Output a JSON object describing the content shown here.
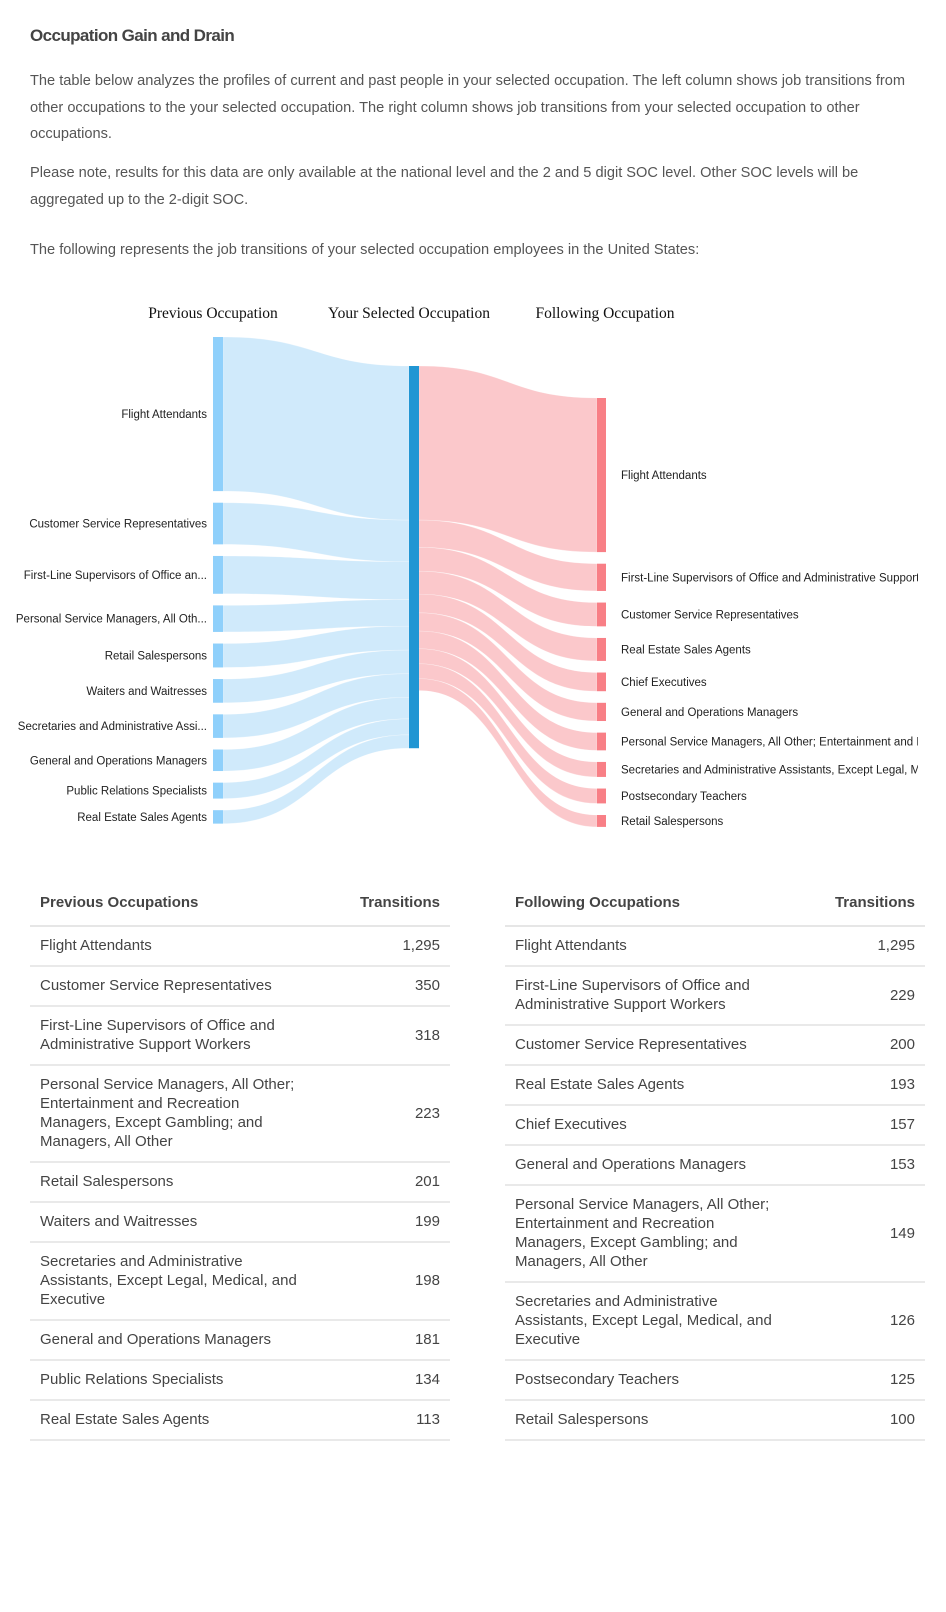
{
  "title": "Occupation Gain and Drain",
  "intro": "The table below analyzes the profiles of current and past people in your selected occupation. The left column shows job transitions from other occupations to the your selected occupation. The right column shows job transitions from your selected occupation to other occupations.",
  "note": "Please note, results for this data are only available at the national level and the 2 and 5 digit SOC level. Other SOC levels will be aggregated up to the 2-digit SOC.",
  "lead": "The following represents the job transitions of your selected occupation employees in the United States:",
  "chart_data": {
    "type": "sankey",
    "column_titles": [
      "Previous Occupation",
      "Your Selected Occupation",
      "Following Occupation"
    ],
    "colors": {
      "prev_node": "#8fd0fb",
      "prev_link": "#cde9fb",
      "center_node": "#2196d3",
      "next_node": "#f87f86",
      "next_link": "#fbc5c8"
    },
    "previous": [
      {
        "label": "Flight Attendants",
        "value": 1295
      },
      {
        "label": "Customer Service Representatives",
        "value": 350
      },
      {
        "label": "First-Line Supervisors of Office an...",
        "value": 318
      },
      {
        "label": "Personal Service Managers, All Oth...",
        "value": 223
      },
      {
        "label": "Retail Salespersons",
        "value": 201
      },
      {
        "label": "Waiters and Waitresses",
        "value": 199
      },
      {
        "label": "Secretaries and Administrative Assi...",
        "value": 198
      },
      {
        "label": "General and Operations Managers",
        "value": 181
      },
      {
        "label": "Public Relations Specialists",
        "value": 134
      },
      {
        "label": "Real Estate Sales Agents",
        "value": 113
      }
    ],
    "following": [
      {
        "label": "Flight Attendants",
        "value": 1295
      },
      {
        "label": "First-Line Supervisors of Office and Administrative Support Workers",
        "value": 229
      },
      {
        "label": "Customer Service Representatives",
        "value": 200
      },
      {
        "label": "Real Estate Sales Agents",
        "value": 193
      },
      {
        "label": "Chief Executives",
        "value": 157
      },
      {
        "label": "General and Operations Managers",
        "value": 153
      },
      {
        "label": "Personal Service Managers, All Other; Entertainment and Recreation Managers, Except Gambling; and Managers, All Other",
        "value": 149
      },
      {
        "label": "Secretaries and Administrative Assistants, Except Legal, Medical, and Executive",
        "value": 126
      },
      {
        "label": "Postsecondary Teachers",
        "value": 125
      },
      {
        "label": "Retail Salespersons",
        "value": 100
      }
    ]
  },
  "previous_table": {
    "headers": [
      "Previous Occupations",
      "Transitions"
    ],
    "rows": [
      {
        "name": "Flight Attendants",
        "value": "1,295"
      },
      {
        "name": "Customer Service Representatives",
        "value": "350"
      },
      {
        "name": "First-Line Supervisors of Office and Administrative Support Workers",
        "value": "318"
      },
      {
        "name": "Personal Service Managers, All Other; Entertainment and Recreation Managers, Except Gambling; and Managers, All Other",
        "value": "223"
      },
      {
        "name": "Retail Salespersons",
        "value": "201"
      },
      {
        "name": "Waiters and Waitresses",
        "value": "199"
      },
      {
        "name": "Secretaries and Administrative Assistants, Except Legal, Medical, and Executive",
        "value": "198"
      },
      {
        "name": "General and Operations Managers",
        "value": "181"
      },
      {
        "name": "Public Relations Specialists",
        "value": "134"
      },
      {
        "name": "Real Estate Sales Agents",
        "value": "113"
      }
    ]
  },
  "following_table": {
    "headers": [
      "Following Occupations",
      "Transitions"
    ],
    "rows": [
      {
        "name": "Flight Attendants",
        "value": "1,295"
      },
      {
        "name": "First-Line Supervisors of Office and Administrative Support Workers",
        "value": "229"
      },
      {
        "name": "Customer Service Representatives",
        "value": "200"
      },
      {
        "name": "Real Estate Sales Agents",
        "value": "193"
      },
      {
        "name": "Chief Executives",
        "value": "157"
      },
      {
        "name": "General and Operations Managers",
        "value": "153"
      },
      {
        "name": "Personal Service Managers, All Other; Entertainment and Recreation Managers, Except Gambling; and Managers, All Other",
        "value": "149"
      },
      {
        "name": "Secretaries and Administrative Assistants, Except Legal, Medical, and Executive",
        "value": "126"
      },
      {
        "name": "Postsecondary Teachers",
        "value": "125"
      },
      {
        "name": "Retail Salespersons",
        "value": "100"
      }
    ]
  }
}
